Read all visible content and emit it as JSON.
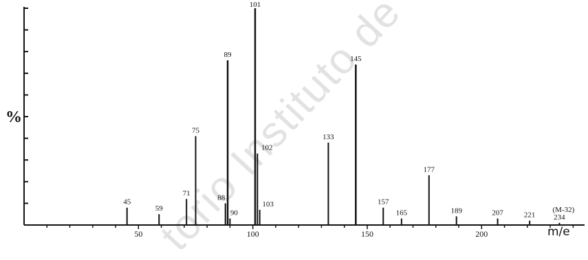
{
  "chart_data": {
    "type": "bar",
    "title": "",
    "xlabel": "m/e",
    "ylabel": "%",
    "xlim": [
      0,
      245
    ],
    "ylim": [
      0,
      100
    ],
    "xticks": [
      50,
      100,
      150,
      200
    ],
    "grid": false,
    "peaks": [
      {
        "mz": 45,
        "intensity": 8,
        "label": "45"
      },
      {
        "mz": 59,
        "intensity": 5,
        "label": "59"
      },
      {
        "mz": 71,
        "intensity": 12,
        "label": "71"
      },
      {
        "mz": 75,
        "intensity": 41,
        "label": "75"
      },
      {
        "mz": 88,
        "intensity": 10,
        "label": "88"
      },
      {
        "mz": 89,
        "intensity": 76,
        "label": "89"
      },
      {
        "mz": 90,
        "intensity": 3,
        "label": "90"
      },
      {
        "mz": 101,
        "intensity": 100,
        "label": "101"
      },
      {
        "mz": 102,
        "intensity": 33,
        "label": "102"
      },
      {
        "mz": 103,
        "intensity": 7,
        "label": "103"
      },
      {
        "mz": 133,
        "intensity": 38,
        "label": "133"
      },
      {
        "mz": 145,
        "intensity": 74,
        "label": "145"
      },
      {
        "mz": 157,
        "intensity": 8,
        "label": "157"
      },
      {
        "mz": 165,
        "intensity": 3,
        "label": "165"
      },
      {
        "mz": 177,
        "intensity": 23,
        "label": "177"
      },
      {
        "mz": 189,
        "intensity": 4,
        "label": "189"
      },
      {
        "mz": 207,
        "intensity": 3,
        "label": "207"
      },
      {
        "mz": 221,
        "intensity": 2,
        "label": "221"
      },
      {
        "mz": 234,
        "intensity": 1,
        "label": "234",
        "note": "(M-32)"
      }
    ]
  },
  "watermark_text": "torio Instituto de C"
}
